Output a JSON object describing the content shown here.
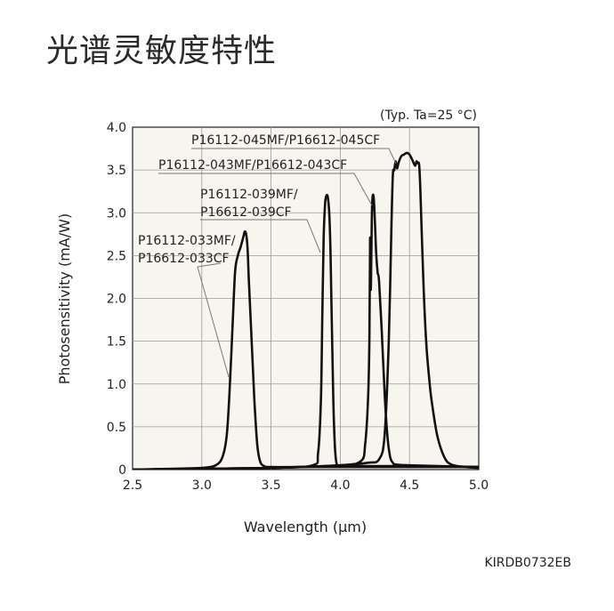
{
  "page": {
    "title": "光谱灵敏度特性",
    "figure_code": "KIRDB0732EB"
  },
  "chart_data": {
    "type": "line",
    "condition": "(Typ. Ta=25 °C)",
    "xlabel": "Wavelength (μm)",
    "ylabel": "Photosensitivity (mA/W)",
    "xlim": [
      2.5,
      5.0
    ],
    "ylim": [
      0,
      4.0
    ],
    "grid": true,
    "x_ticks": [
      2.5,
      3.0,
      3.5,
      4.0,
      4.5,
      5.0
    ],
    "x_tick_labels": [
      "2.5",
      "3.0",
      "3.5",
      "4.0",
      "4.5",
      "5.0"
    ],
    "y_ticks": [
      0,
      0.5,
      1.0,
      1.5,
      2.0,
      2.5,
      3.0,
      3.5,
      4.0
    ],
    "y_tick_labels": [
      "0",
      "0.5",
      "1.0",
      "1.5",
      "2.0",
      "2.5",
      "3.0",
      "3.5",
      "4.0"
    ],
    "series": [
      {
        "name": "P16112-033MF/P16612-033CF",
        "label_lines": [
          "P16112-033MF/",
          "P16612-033CF"
        ],
        "x": [
          2.5,
          2.8,
          3.0,
          3.1,
          3.15,
          3.18,
          3.2,
          3.22,
          3.24,
          3.26,
          3.28,
          3.3,
          3.31,
          3.32,
          3.33,
          3.34,
          3.36,
          3.38,
          3.4,
          3.42,
          3.45,
          3.5,
          3.7,
          4.0,
          4.5,
          5.0
        ],
        "y": [
          0.0,
          0.01,
          0.02,
          0.05,
          0.15,
          0.4,
          0.9,
          1.6,
          2.3,
          2.5,
          2.6,
          2.72,
          2.78,
          2.75,
          2.6,
          2.2,
          1.5,
          0.8,
          0.3,
          0.1,
          0.04,
          0.03,
          0.03,
          0.03,
          0.03,
          0.03
        ]
      },
      {
        "name": "P16112-039MF/P16612-039CF",
        "label_lines": [
          "P16112-039MF/",
          "P16612-039CF"
        ],
        "x": [
          2.5,
          3.0,
          3.5,
          3.8,
          3.84,
          3.86,
          3.87,
          3.88,
          3.89,
          3.9,
          3.91,
          3.92,
          3.93,
          3.94,
          3.95,
          3.96,
          3.97,
          3.98,
          4.0,
          4.1,
          4.5,
          5.0
        ],
        "y": [
          0.0,
          0.01,
          0.02,
          0.05,
          0.2,
          0.8,
          1.8,
          2.7,
          3.1,
          3.2,
          3.18,
          3.0,
          2.5,
          1.6,
          0.8,
          0.3,
          0.1,
          0.05,
          0.04,
          0.04,
          0.04,
          0.03
        ]
      },
      {
        "name": "P16112-043MF/P16612-043CF",
        "label_lines": [
          "P16112-043MF/P16612-043CF"
        ],
        "x": [
          2.5,
          3.0,
          3.5,
          4.0,
          4.15,
          4.18,
          4.2,
          4.21,
          4.215,
          4.22,
          4.225,
          4.23,
          4.24,
          4.25,
          4.26,
          4.27,
          4.28,
          4.3,
          4.32,
          4.34,
          4.36,
          4.38,
          4.4,
          4.5,
          5.0
        ],
        "y": [
          0.0,
          0.01,
          0.02,
          0.05,
          0.1,
          0.3,
          0.8,
          1.5,
          2.7,
          2.1,
          2.6,
          3.1,
          3.2,
          2.9,
          2.5,
          2.3,
          2.2,
          1.6,
          0.9,
          0.4,
          0.15,
          0.08,
          0.06,
          0.05,
          0.03
        ]
      },
      {
        "name": "P16112-045MF/P16612-045CF",
        "label_lines": [
          "P16112-045MF/P16612-045CF"
        ],
        "x": [
          2.5,
          3.0,
          3.5,
          4.0,
          4.2,
          4.28,
          4.32,
          4.35,
          4.37,
          4.38,
          4.39,
          4.4,
          4.41,
          4.42,
          4.44,
          4.46,
          4.48,
          4.5,
          4.52,
          4.54,
          4.55,
          4.56,
          4.57,
          4.58,
          4.6,
          4.62,
          4.64,
          4.66,
          4.7,
          4.75,
          4.8,
          4.9,
          5.0
        ],
        "y": [
          0.0,
          0.01,
          0.02,
          0.05,
          0.08,
          0.12,
          0.4,
          1.5,
          2.9,
          3.45,
          3.5,
          3.6,
          3.52,
          3.58,
          3.66,
          3.68,
          3.7,
          3.68,
          3.62,
          3.55,
          3.6,
          3.58,
          3.55,
          3.2,
          2.2,
          1.5,
          1.1,
          0.8,
          0.4,
          0.15,
          0.06,
          0.03,
          0.02
        ]
      }
    ]
  }
}
